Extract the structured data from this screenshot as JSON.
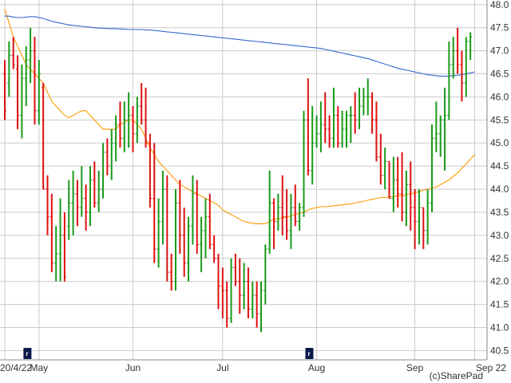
{
  "chart_data": {
    "type": "ohlc",
    "title": "",
    "xlabel": "",
    "ylabel": "",
    "ylim": [
      40.3,
      48.1
    ],
    "grid": true,
    "yticks": [
      40.5,
      41.0,
      41.5,
      42.0,
      42.5,
      43.0,
      43.5,
      44.0,
      44.5,
      45.0,
      45.5,
      46.0,
      46.5,
      47.0,
      47.5,
      48.0
    ],
    "ytick_labels": [
      "40.5",
      "41.0",
      "41.5",
      "42.0",
      "42.5",
      "43.0",
      "43.5",
      "44.0",
      "44.5",
      "45.0",
      "45.5",
      "46.0",
      "46.5",
      "47.0",
      "47.5",
      "48.0"
    ],
    "xticks": [
      {
        "label": "20/4/22",
        "index": 0
      },
      {
        "label": "May",
        "index": 8
      },
      {
        "label": "Jun",
        "index": 30
      },
      {
        "label": "Jul",
        "index": 51
      },
      {
        "label": "Aug",
        "index": 73
      },
      {
        "label": "Sep",
        "index": 96
      },
      {
        "label": "Sep 22",
        "index": 110
      }
    ],
    "colors": {
      "up": "#1a9a1a",
      "down": "#dd1111",
      "ma_short": "#ff9900",
      "ma_long": "#3366cc",
      "grid": "#cccccc",
      "marker": "#0a1a4a"
    },
    "bars": [
      [
        46.5,
        46.8,
        45.5,
        45.7
      ],
      [
        46.3,
        47.2,
        46.0,
        46.9
      ],
      [
        46.9,
        47.3,
        46.6,
        46.7
      ],
      [
        46.6,
        46.9,
        45.3,
        45.6
      ],
      [
        45.6,
        46.7,
        45.1,
        46.4
      ],
      [
        46.4,
        47.1,
        45.8,
        46.8
      ],
      [
        46.8,
        47.5,
        46.3,
        47.0
      ],
      [
        47.0,
        47.3,
        45.4,
        45.7
      ],
      [
        45.7,
        46.8,
        45.4,
        46.5
      ],
      [
        46.2,
        46.3,
        44.0,
        44.0
      ],
      [
        44.0,
        44.3,
        43.0,
        43.4
      ],
      [
        43.4,
        43.9,
        42.2,
        42.4
      ],
      [
        42.4,
        43.2,
        42.0,
        42.6
      ],
      [
        42.6,
        43.8,
        42.0,
        43.0
      ],
      [
        43.0,
        43.5,
        42.0,
        42.1
      ],
      [
        43.2,
        44.2,
        42.9,
        43.7
      ],
      [
        43.7,
        44.4,
        43.0,
        43.9
      ],
      [
        43.9,
        44.2,
        43.2,
        43.6
      ],
      [
        43.6,
        44.5,
        43.4,
        43.8
      ],
      [
        43.8,
        44.1,
        43.1,
        43.5
      ],
      [
        43.5,
        44.5,
        43.2,
        44.2
      ],
      [
        44.2,
        44.6,
        43.6,
        43.7
      ],
      [
        43.7,
        44.4,
        43.5,
        44.0
      ],
      [
        44.0,
        45.0,
        43.8,
        44.8
      ],
      [
        44.8,
        45.1,
        44.3,
        44.5
      ],
      [
        44.5,
        45.3,
        44.2,
        45.0
      ],
      [
        45.0,
        45.6,
        44.6,
        45.4
      ],
      [
        45.4,
        45.9,
        44.9,
        45.1
      ],
      [
        45.1,
        45.9,
        44.8,
        45.5
      ],
      [
        45.5,
        46.1,
        44.9,
        45.6
      ],
      [
        45.6,
        45.8,
        44.8,
        45.2
      ],
      [
        45.2,
        46.0,
        45.0,
        45.8
      ],
      [
        45.8,
        46.3,
        45.4,
        45.5
      ],
      [
        45.5,
        46.2,
        44.9,
        45.0
      ],
      [
        45.0,
        45.2,
        43.6,
        43.8
      ],
      [
        43.8,
        45.0,
        42.4,
        42.7
      ],
      [
        42.7,
        43.8,
        42.3,
        43.3
      ],
      [
        43.3,
        44.4,
        42.8,
        44.0
      ],
      [
        44.0,
        44.3,
        42.0,
        42.2
      ],
      [
        42.2,
        42.6,
        41.8,
        42.0
      ],
      [
        42.0,
        44.0,
        41.8,
        43.7
      ],
      [
        43.7,
        44.2,
        42.6,
        43.0
      ],
      [
        43.0,
        43.6,
        42.1,
        42.4
      ],
      [
        42.4,
        43.4,
        42.0,
        43.2
      ],
      [
        43.2,
        44.3,
        42.8,
        43.9
      ],
      [
        43.9,
        44.2,
        42.6,
        42.8
      ],
      [
        42.8,
        43.4,
        42.2,
        43.1
      ],
      [
        43.1,
        43.8,
        42.5,
        43.4
      ],
      [
        43.4,
        43.9,
        42.7,
        42.8
      ],
      [
        42.8,
        43.0,
        42.4,
        42.5
      ],
      [
        42.5,
        42.6,
        41.4,
        41.9
      ],
      [
        41.9,
        42.3,
        41.2,
        41.8
      ],
      [
        41.8,
        42.0,
        41.0,
        41.2
      ],
      [
        41.2,
        42.5,
        41.1,
        42.3
      ],
      [
        42.3,
        42.6,
        41.9,
        42.0
      ],
      [
        42.0,
        42.5,
        41.3,
        41.7
      ],
      [
        41.7,
        42.4,
        41.4,
        42.0
      ],
      [
        42.0,
        42.3,
        41.2,
        41.4
      ],
      [
        41.4,
        42.0,
        41.2,
        41.7
      ],
      [
        41.7,
        42.0,
        41.0,
        41.3
      ],
      [
        41.3,
        42.0,
        40.9,
        41.8
      ],
      [
        41.8,
        42.8,
        41.5,
        42.7
      ],
      [
        42.7,
        44.4,
        42.6,
        43.7
      ],
      [
        43.7,
        43.8,
        42.7,
        43.3
      ],
      [
        43.3,
        43.9,
        43.1,
        43.6
      ],
      [
        43.6,
        44.3,
        43.0,
        43.4
      ],
      [
        43.4,
        44.0,
        42.9,
        43.1
      ],
      [
        43.1,
        43.9,
        42.7,
        43.6
      ],
      [
        43.6,
        44.1,
        43.2,
        43.3
      ],
      [
        43.3,
        43.7,
        43.1,
        43.6
      ],
      [
        43.6,
        45.7,
        43.4,
        45.5
      ],
      [
        45.5,
        46.4,
        44.3,
        44.4
      ],
      [
        44.4,
        45.8,
        44.1,
        45.0
      ],
      [
        45.0,
        45.6,
        44.9,
        45.2
      ],
      [
        45.2,
        45.9,
        44.8,
        45.4
      ],
      [
        45.4,
        46.1,
        45.0,
        45.3
      ],
      [
        45.3,
        45.6,
        44.9,
        45.1
      ],
      [
        45.1,
        46.2,
        44.9,
        45.6
      ],
      [
        45.6,
        45.8,
        44.9,
        45.0
      ],
      [
        45.0,
        45.7,
        44.9,
        45.3
      ],
      [
        45.3,
        45.7,
        44.9,
        45.6
      ],
      [
        45.6,
        45.8,
        45.0,
        45.6
      ],
      [
        45.6,
        46.1,
        45.2,
        45.5
      ],
      [
        45.5,
        46.2,
        45.3,
        45.8
      ],
      [
        45.8,
        46.2,
        45.6,
        46.0
      ],
      [
        46.0,
        46.4,
        45.6,
        46.0
      ],
      [
        46.0,
        46.1,
        45.2,
        45.5
      ],
      [
        45.5,
        45.9,
        44.6,
        44.7
      ],
      [
        44.7,
        45.2,
        44.1,
        44.3
      ],
      [
        44.3,
        44.9,
        44.0,
        44.6
      ],
      [
        44.6,
        44.6,
        43.8,
        43.8
      ],
      [
        43.8,
        44.7,
        43.5,
        44.2
      ],
      [
        44.2,
        44.7,
        43.6,
        43.9
      ],
      [
        43.9,
        44.8,
        43.3,
        43.5
      ],
      [
        43.5,
        44.4,
        43.2,
        44.1
      ],
      [
        44.1,
        44.6,
        43.1,
        43.6
      ],
      [
        43.6,
        44.0,
        42.7,
        43.3
      ],
      [
        43.3,
        44.0,
        42.8,
        43.6
      ],
      [
        43.6,
        43.6,
        42.7,
        43.1
      ],
      [
        43.1,
        44.0,
        42.8,
        43.7
      ],
      [
        43.7,
        45.4,
        43.5,
        45.1
      ],
      [
        45.1,
        45.9,
        44.8,
        45.2
      ],
      [
        45.2,
        45.6,
        44.7,
        45.5
      ],
      [
        45.5,
        46.2,
        44.4,
        45.6
      ],
      [
        45.6,
        47.2,
        45.5,
        46.7
      ],
      [
        46.7,
        47.3,
        46.4,
        47.0
      ],
      [
        47.0,
        47.5,
        46.5,
        46.7
      ],
      [
        46.7,
        47.0,
        45.9,
        46.3
      ],
      [
        46.3,
        47.3,
        46.0,
        47.2
      ],
      [
        47.2,
        47.4,
        46.8,
        47.3
      ]
    ],
    "series": [
      {
        "type": "line",
        "role": "ma_short",
        "values": [
          47.9,
          47.6,
          47.3,
          47.1,
          46.9,
          46.7,
          46.6,
          46.5,
          46.4,
          46.3,
          46.1,
          45.9,
          45.8,
          45.7,
          45.6,
          45.55,
          45.6,
          45.65,
          45.7,
          45.7,
          45.6,
          45.5,
          45.4,
          45.3,
          45.3,
          45.3,
          45.3,
          45.4,
          45.45,
          45.5,
          45.5,
          45.4,
          45.3,
          45.1,
          44.9,
          44.75,
          44.6,
          44.5,
          44.4,
          44.3,
          44.2,
          44.1,
          44.05,
          44.0,
          43.95,
          43.9,
          43.85,
          43.8,
          43.75,
          43.7,
          43.65,
          43.55,
          43.5,
          43.45,
          43.4,
          43.35,
          43.3,
          43.28,
          43.26,
          43.25,
          43.25,
          43.25,
          43.3,
          43.35,
          43.35,
          43.38,
          43.4,
          43.42,
          43.45,
          43.48,
          43.5,
          43.55,
          43.58,
          43.6,
          43.62,
          43.62,
          43.63,
          43.64,
          43.65,
          43.66,
          43.67,
          43.68,
          43.7,
          43.72,
          43.74,
          43.76,
          43.78,
          43.8,
          43.82,
          43.82,
          43.83,
          43.84,
          43.85,
          43.86,
          43.88,
          43.9,
          43.92,
          43.95,
          43.98,
          44.0,
          44.02,
          44.05,
          44.1,
          44.15,
          44.2,
          44.28,
          44.35,
          44.45,
          44.55,
          44.65,
          44.75
        ]
      },
      {
        "type": "line",
        "role": "ma_long",
        "values": [
          47.75,
          47.75,
          47.73,
          47.72,
          47.72,
          47.73,
          47.74,
          47.74,
          47.72,
          47.7,
          47.67,
          47.64,
          47.62,
          47.6,
          47.58,
          47.56,
          47.55,
          47.54,
          47.53,
          47.52,
          47.51,
          47.5,
          47.49,
          47.49,
          47.48,
          47.48,
          47.48,
          47.47,
          47.47,
          47.46,
          47.46,
          47.46,
          47.46,
          47.45,
          47.45,
          47.44,
          47.43,
          47.42,
          47.41,
          47.4,
          47.39,
          47.38,
          47.37,
          47.36,
          47.35,
          47.34,
          47.33,
          47.32,
          47.31,
          47.3,
          47.29,
          47.28,
          47.27,
          47.26,
          47.25,
          47.24,
          47.23,
          47.22,
          47.21,
          47.2,
          47.19,
          47.18,
          47.17,
          47.16,
          47.15,
          47.14,
          47.13,
          47.12,
          47.11,
          47.1,
          47.09,
          47.08,
          47.07,
          47.06,
          47.05,
          47.03,
          47.01,
          46.99,
          46.97,
          46.95,
          46.93,
          46.91,
          46.89,
          46.87,
          46.85,
          46.83,
          46.8,
          46.77,
          46.74,
          46.71,
          46.68,
          46.65,
          46.62,
          46.6,
          46.58,
          46.56,
          46.54,
          46.52,
          46.5,
          46.48,
          46.47,
          46.46,
          46.45,
          46.45,
          46.45,
          46.46,
          46.47,
          46.48,
          46.5,
          46.52,
          46.54
        ]
      }
    ],
    "markers": [
      {
        "index": 4,
        "label": "r"
      },
      {
        "index": 70,
        "label": "r"
      }
    ]
  },
  "footer": {
    "credit": "(c)SharePad"
  }
}
